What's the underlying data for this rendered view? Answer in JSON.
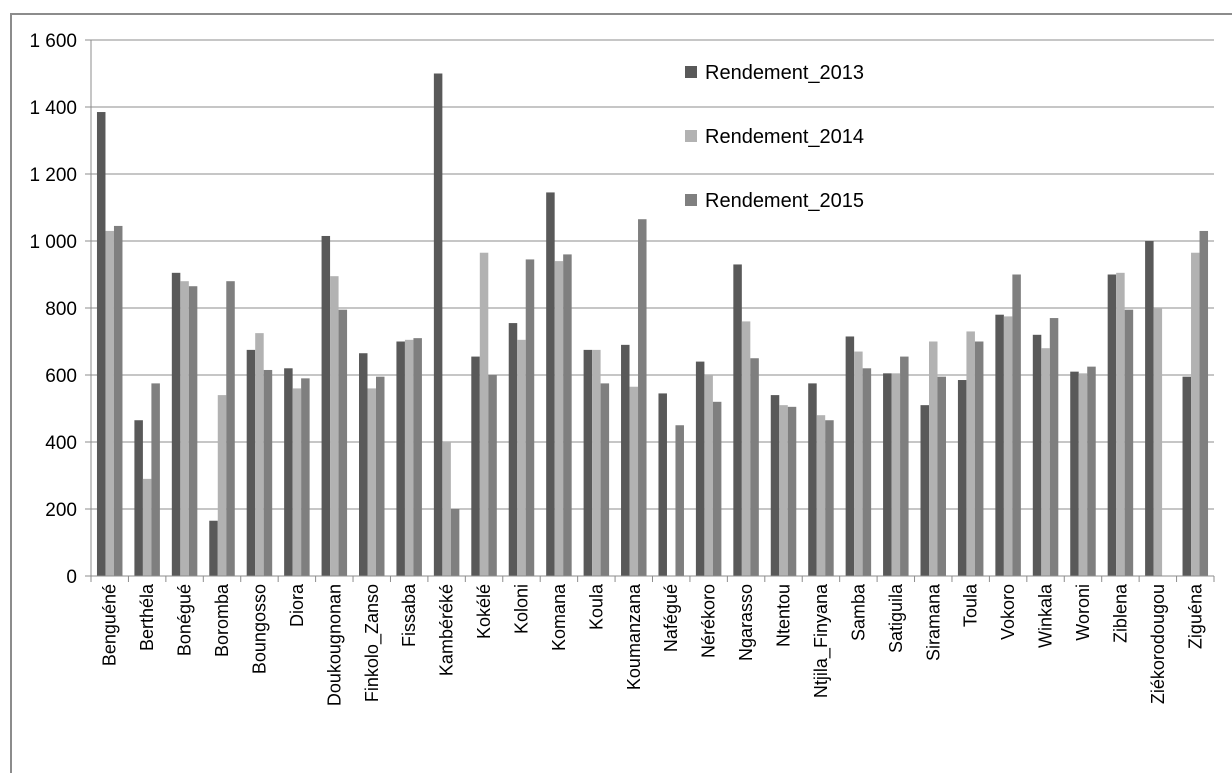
{
  "chart_data": {
    "type": "bar",
    "title": "",
    "xlabel": "",
    "ylabel": "",
    "ylim": [
      0,
      1600
    ],
    "yticks": [
      0,
      200,
      400,
      600,
      800,
      1000,
      1200,
      1400,
      1600
    ],
    "ytick_labels": [
      "0",
      "200",
      "400",
      "600",
      "800",
      "1 000",
      "1 200",
      "1 400",
      "1 600"
    ],
    "grid": "horizontal",
    "legend_position": "top-right",
    "categories": [
      "Benguéné",
      "Berthéla",
      "Bonégué",
      "Boromba",
      "Boungosso",
      "Diora",
      "Doukougnonan",
      "Finkolo_Zanso",
      "Fissaba",
      "Kambéréké",
      "Kokélé",
      "Koloni",
      "Komana",
      "Koula",
      "Koumanzana",
      "Nafégué",
      "Nérékoro",
      "Ngarasso",
      "Ntentou",
      "Ntjila_Finyana",
      "Samba",
      "Satiguila",
      "Siramana",
      "Toula",
      "Vokoro",
      "Winkala",
      "Woroni",
      "Ziblena",
      "Ziékorodougou",
      "Ziguéna"
    ],
    "series": [
      {
        "name": "Rendement_2013",
        "color": "#595959",
        "values": [
          1385,
          465,
          905,
          165,
          675,
          620,
          1015,
          665,
          700,
          1500,
          655,
          755,
          1145,
          675,
          690,
          545,
          640,
          930,
          540,
          575,
          715,
          605,
          510,
          585,
          780,
          720,
          610,
          900,
          1000,
          595
        ]
      },
      {
        "name": "Rendement_2014",
        "color": "#b2b2b2",
        "values": [
          1030,
          290,
          880,
          540,
          725,
          560,
          895,
          560,
          705,
          400,
          965,
          705,
          940,
          675,
          565,
          0,
          600,
          760,
          510,
          480,
          670,
          605,
          700,
          730,
          775,
          680,
          605,
          905,
          800,
          965
        ]
      },
      {
        "name": "Rendement_2015",
        "color": "#7f7f7f",
        "values": [
          1045,
          575,
          865,
          880,
          615,
          590,
          795,
          595,
          710,
          200,
          600,
          945,
          960,
          575,
          1065,
          450,
          520,
          650,
          505,
          465,
          620,
          655,
          595,
          700,
          900,
          770,
          625,
          795,
          0,
          1030
        ]
      }
    ]
  }
}
